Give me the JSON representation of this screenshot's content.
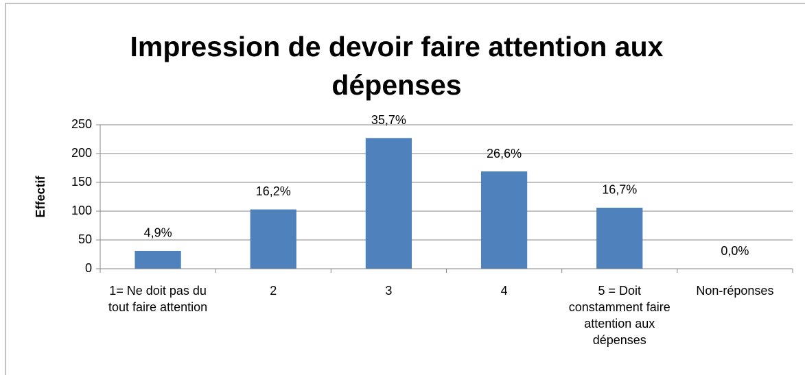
{
  "chart_data": {
    "type": "bar",
    "title": "Impression de devoir faire attention aux dépenses",
    "y_label": "Effectif",
    "categories": [
      "1= Ne doit pas du tout faire attention",
      "2",
      "3",
      "4",
      "5 = Doit constamment faire attention aux dépenses",
      "Non-réponses"
    ],
    "values": [
      31,
      103,
      227,
      169,
      106,
      0
    ],
    "data_labels": [
      "4,9%",
      "16,2%",
      "35,7%",
      "26,6%",
      "16,7%",
      "0,0%"
    ],
    "color": "#4f81bd",
    "ylim": [
      0,
      250
    ],
    "yticks": [
      0,
      50,
      100,
      150,
      200,
      250
    ],
    "grid": true
  }
}
